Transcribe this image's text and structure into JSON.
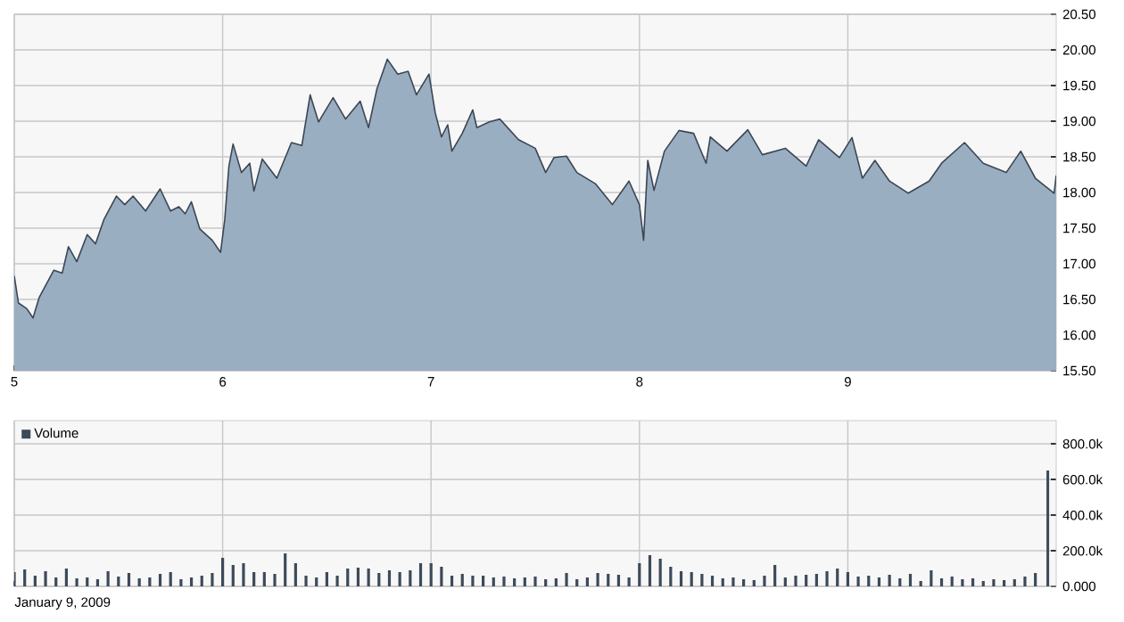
{
  "chart_data": [
    {
      "type": "area",
      "x": [
        5.0,
        5.02,
        5.06,
        5.09,
        5.12,
        5.19,
        5.23,
        5.26,
        5.3,
        5.35,
        5.39,
        5.43,
        5.49,
        5.53,
        5.57,
        5.63,
        5.7,
        5.75,
        5.79,
        5.82,
        5.85,
        5.89,
        5.95,
        5.99,
        6.01,
        6.03,
        6.05,
        6.09,
        6.13,
        6.15,
        6.19,
        6.26,
        6.33,
        6.38,
        6.42,
        6.46,
        6.53,
        6.59,
        6.66,
        6.7,
        6.74,
        6.79,
        6.84,
        6.89,
        6.93,
        6.99,
        7.02,
        7.05,
        7.08,
        7.1,
        7.15,
        7.2,
        7.22,
        7.28,
        7.33,
        7.42,
        7.5,
        7.55,
        7.59,
        7.65,
        7.7,
        7.79,
        7.87,
        7.95,
        8.0,
        8.02,
        8.04,
        8.07,
        8.12,
        8.19,
        8.26,
        8.32,
        8.34,
        8.42,
        8.52,
        8.59,
        8.7,
        8.8,
        8.86,
        8.96,
        9.02,
        9.07,
        9.13,
        9.2,
        9.29,
        9.39,
        9.45,
        9.56,
        9.65,
        9.76,
        9.83,
        9.9,
        9.99,
        10.0
      ],
      "series": [
        {
          "color": "#3c4654",
          "values": [
            16.83,
            16.45,
            16.37,
            16.24,
            16.53,
            16.91,
            16.87,
            17.24,
            17.03,
            17.41,
            17.28,
            17.62,
            17.95,
            17.83,
            17.95,
            17.74,
            18.05,
            17.74,
            17.8,
            17.7,
            17.87,
            17.49,
            17.33,
            17.16,
            17.62,
            18.37,
            18.68,
            18.28,
            18.41,
            18.02,
            18.47,
            18.2,
            18.7,
            18.66,
            19.37,
            18.99,
            19.33,
            19.03,
            19.28,
            18.91,
            19.45,
            19.87,
            19.66,
            19.7,
            19.37,
            19.66,
            19.12,
            18.78,
            18.95,
            18.58,
            18.83,
            19.16,
            18.91,
            18.99,
            19.03,
            18.74,
            18.62,
            18.28,
            18.49,
            18.51,
            18.28,
            18.12,
            17.83,
            18.16,
            17.83,
            17.33,
            18.45,
            18.03,
            18.58,
            18.87,
            18.83,
            18.41,
            18.78,
            18.58,
            18.88,
            18.53,
            18.62,
            18.37,
            18.74,
            18.49,
            18.77,
            18.2,
            18.45,
            18.16,
            17.99,
            18.16,
            18.41,
            18.7,
            18.41,
            18.28,
            18.58,
            18.2,
            17.99,
            18.24
          ]
        }
      ],
      "xlim": [
        5,
        10
      ],
      "xticks": [
        5,
        6,
        7,
        8,
        9
      ],
      "ylim": [
        15.5,
        20.5
      ],
      "yticks": [
        {
          "value": 15.5,
          "label": "15.50"
        },
        {
          "value": 16,
          "label": "16.00"
        },
        {
          "value": 16.5,
          "label": "16.50"
        },
        {
          "value": 17,
          "label": "17.00"
        },
        {
          "value": 17.5,
          "label": "17.50"
        },
        {
          "value": 18,
          "label": "18.00"
        },
        {
          "value": 18.5,
          "label": "18.50"
        },
        {
          "value": 19,
          "label": "19.00"
        },
        {
          "value": 19.5,
          "label": "19.50"
        },
        {
          "value": 20,
          "label": "20.00"
        },
        {
          "value": 20.5,
          "label": "20.50"
        }
      ],
      "grid": true,
      "legend": false
    },
    {
      "type": "bar",
      "x": [
        5.0,
        5.05,
        5.1,
        5.15,
        5.2,
        5.25,
        5.3,
        5.35,
        5.4,
        5.45,
        5.5,
        5.55,
        5.6,
        5.65,
        5.7,
        5.75,
        5.8,
        5.85,
        5.9,
        5.95,
        6.0,
        6.05,
        6.1,
        6.15,
        6.2,
        6.25,
        6.3,
        6.35,
        6.4,
        6.45,
        6.5,
        6.55,
        6.6,
        6.65,
        6.7,
        6.75,
        6.8,
        6.85,
        6.9,
        6.95,
        7.0,
        7.05,
        7.1,
        7.15,
        7.2,
        7.25,
        7.3,
        7.35,
        7.4,
        7.45,
        7.5,
        7.55,
        7.6,
        7.65,
        7.7,
        7.75,
        7.8,
        7.85,
        7.9,
        7.95,
        8.0,
        8.05,
        8.1,
        8.15,
        8.2,
        8.25,
        8.3,
        8.35,
        8.4,
        8.45,
        8.5,
        8.55,
        8.6,
        8.65,
        8.7,
        8.75,
        8.8,
        8.85,
        8.9,
        8.95,
        9.0,
        9.05,
        9.1,
        9.15,
        9.2,
        9.25,
        9.3,
        9.35,
        9.4,
        9.45,
        9.5,
        9.55,
        9.6,
        9.65,
        9.7,
        9.75,
        9.8,
        9.85,
        9.9,
        9.96
      ],
      "series": [
        {
          "name": "Volume",
          "color": "#3d4a5a",
          "values": [
            80000,
            95000,
            60000,
            85000,
            50000,
            100000,
            45000,
            50000,
            40000,
            85000,
            55000,
            75000,
            45000,
            50000,
            70000,
            80000,
            40000,
            50000,
            60000,
            75000,
            160000,
            120000,
            130000,
            80000,
            80000,
            70000,
            185000,
            130000,
            60000,
            50000,
            80000,
            60000,
            100000,
            105000,
            100000,
            75000,
            90000,
            80000,
            90000,
            130000,
            130000,
            110000,
            60000,
            70000,
            60000,
            60000,
            50000,
            55000,
            45000,
            50000,
            55000,
            40000,
            45000,
            75000,
            40000,
            50000,
            75000,
            70000,
            65000,
            50000,
            130000,
            175000,
            155000,
            110000,
            85000,
            80000,
            70000,
            60000,
            45000,
            50000,
            40000,
            35000,
            60000,
            120000,
            50000,
            60000,
            65000,
            70000,
            85000,
            100000,
            80000,
            55000,
            60000,
            50000,
            65000,
            45000,
            70000,
            30000,
            90000,
            45000,
            55000,
            40000,
            45000,
            30000,
            40000,
            35000,
            40000,
            55000,
            75000,
            650000
          ]
        }
      ],
      "xlim": [
        5,
        10
      ],
      "xticks": [
        5,
        6,
        7,
        8,
        9
      ],
      "ylim": [
        0,
        930000
      ],
      "yticks": [
        {
          "value": 0,
          "label": "0.000"
        },
        {
          "value": 200000,
          "label": "200.0k"
        },
        {
          "value": 400000,
          "label": "400.0k"
        },
        {
          "value": 600000,
          "label": "600.0k"
        },
        {
          "value": 800000,
          "label": "800.0k"
        }
      ],
      "tick_labels": "y",
      "grid": true,
      "legend": "top left",
      "annotations": [
        "January 9, 2009"
      ]
    }
  ]
}
